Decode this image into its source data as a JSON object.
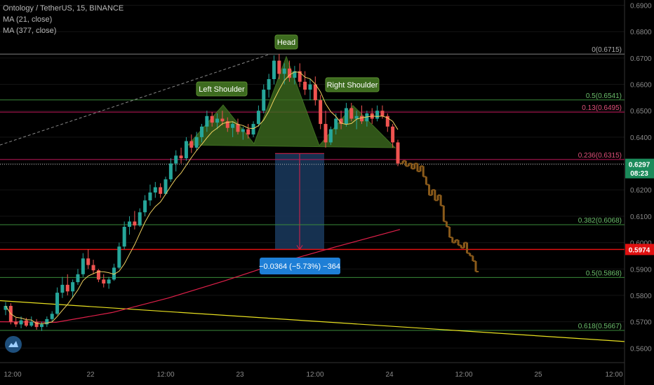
{
  "header": {
    "title": "Ontology / TetherUS, 15, BINANCE",
    "ma1": "MA (21, close)",
    "ma2": "MA (377, close)"
  },
  "colors": {
    "background": "#000000",
    "bull": "#26a69a",
    "bear": "#ef5350",
    "ma21": "#f0d060",
    "ma377": "#e0204a",
    "fib_green": "#3a8a3a",
    "fib_red": "#c2185b",
    "projection": "#8a5a1a",
    "pattern_fill": "#3d6b1f",
    "measure_box": "#1a3a5e",
    "badge_blue": "#1e7fd6",
    "price_green": "#1b8a5a",
    "price_red": "#e01010"
  },
  "chart_data": {
    "type": "candlestick",
    "symbol": "Ontology / TetherUS",
    "interval": "15",
    "exchange": "BINANCE",
    "y_axis": {
      "ticks": [
        "0.6900",
        "0.6800",
        "0.6700",
        "0.6600",
        "0.6500",
        "0.6400",
        "0.6300",
        "0.6200",
        "0.6100",
        "0.6000",
        "0.5900",
        "0.5800",
        "0.5700",
        "0.5600"
      ],
      "range": [
        0.5545,
        0.692
      ]
    },
    "x_axis": {
      "ticks": [
        "12:00",
        "22",
        "12:00",
        "23",
        "12:00",
        "24",
        "12:00",
        "25",
        "12:00"
      ]
    },
    "fib_levels": [
      {
        "label": "0(0.6715)",
        "value": 0.6715,
        "color": "#808080"
      },
      {
        "label": "0.5(0.6541)",
        "value": 0.6541,
        "color": "#3a8a3a"
      },
      {
        "label": "0.13(0.6495)",
        "value": 0.6495,
        "color": "#c2185b"
      },
      {
        "label": "0.236(0.6315)",
        "value": 0.6315,
        "color": "#c2185b"
      },
      {
        "label": "0.382(0.6068)",
        "value": 0.6068,
        "color": "#3a8a3a"
      },
      {
        "label": "0.5(0.5868)",
        "value": 0.5868,
        "color": "#3a8a3a"
      },
      {
        "label": "0.618(0.5667)",
        "value": 0.5667,
        "color": "#3a8a3a"
      }
    ],
    "price_tags": [
      {
        "label": "0.6297",
        "value": 0.6297,
        "color": "#1b8a5a"
      },
      {
        "label": "08:23",
        "value": 0.6265,
        "color": "#1b8a5a"
      },
      {
        "label": "0.5974",
        "value": 0.5974,
        "color": "#e01010"
      }
    ],
    "pattern_labels": {
      "left": "Left Shoulder",
      "head": "Head",
      "right": "Right Shoulder"
    },
    "measure": {
      "label": "−0.0364 (−5.73%) −364",
      "from": 0.6338,
      "to": 0.5974
    },
    "candles": [
      [
        0.5745,
        0.5775,
        0.5725,
        0.576
      ],
      [
        0.576,
        0.577,
        0.569,
        0.57
      ],
      [
        0.57,
        0.5715,
        0.568,
        0.569
      ],
      [
        0.569,
        0.572,
        0.5675,
        0.5705
      ],
      [
        0.5705,
        0.5715,
        0.568,
        0.5685
      ],
      [
        0.5685,
        0.572,
        0.568,
        0.57
      ],
      [
        0.57,
        0.571,
        0.567,
        0.568
      ],
      [
        0.568,
        0.57,
        0.5665,
        0.569
      ],
      [
        0.569,
        0.572,
        0.568,
        0.571
      ],
      [
        0.571,
        0.574,
        0.57,
        0.573
      ],
      [
        0.573,
        0.583,
        0.5725,
        0.581
      ],
      [
        0.581,
        0.587,
        0.579,
        0.584
      ],
      [
        0.584,
        0.588,
        0.58,
        0.5815
      ],
      [
        0.5815,
        0.586,
        0.579,
        0.585
      ],
      [
        0.585,
        0.59,
        0.584,
        0.588
      ],
      [
        0.588,
        0.596,
        0.587,
        0.594
      ],
      [
        0.594,
        0.5975,
        0.59,
        0.5915
      ],
      [
        0.5915,
        0.5935,
        0.588,
        0.5895
      ],
      [
        0.5895,
        0.59,
        0.585,
        0.586
      ],
      [
        0.586,
        0.588,
        0.583,
        0.5845
      ],
      [
        0.5845,
        0.587,
        0.5825,
        0.586
      ],
      [
        0.586,
        0.592,
        0.5855,
        0.5905
      ],
      [
        0.5905,
        0.6,
        0.59,
        0.5985
      ],
      [
        0.5985,
        0.608,
        0.5975,
        0.606
      ],
      [
        0.606,
        0.61,
        0.603,
        0.608
      ],
      [
        0.608,
        0.612,
        0.605,
        0.6065
      ],
      [
        0.6065,
        0.613,
        0.606,
        0.6115
      ],
      [
        0.6115,
        0.618,
        0.61,
        0.616
      ],
      [
        0.616,
        0.622,
        0.614,
        0.619
      ],
      [
        0.619,
        0.623,
        0.617,
        0.621
      ],
      [
        0.621,
        0.6225,
        0.617,
        0.6185
      ],
      [
        0.6185,
        0.625,
        0.618,
        0.624
      ],
      [
        0.624,
        0.632,
        0.623,
        0.63
      ],
      [
        0.63,
        0.635,
        0.627,
        0.633
      ],
      [
        0.633,
        0.636,
        0.63,
        0.632
      ],
      [
        0.632,
        0.64,
        0.631,
        0.6385
      ],
      [
        0.6385,
        0.641,
        0.634,
        0.636
      ],
      [
        0.636,
        0.642,
        0.635,
        0.64
      ],
      [
        0.64,
        0.645,
        0.638,
        0.644
      ],
      [
        0.644,
        0.65,
        0.642,
        0.648
      ],
      [
        0.648,
        0.6495,
        0.644,
        0.6455
      ],
      [
        0.6455,
        0.649,
        0.643,
        0.647
      ],
      [
        0.647,
        0.65,
        0.6445,
        0.646
      ],
      [
        0.646,
        0.6475,
        0.642,
        0.6435
      ],
      [
        0.6435,
        0.646,
        0.64,
        0.645
      ],
      [
        0.645,
        0.647,
        0.641,
        0.642
      ],
      [
        0.642,
        0.644,
        0.639,
        0.643
      ],
      [
        0.643,
        0.645,
        0.6395,
        0.641
      ],
      [
        0.641,
        0.646,
        0.64,
        0.645
      ],
      [
        0.645,
        0.652,
        0.644,
        0.65
      ],
      [
        0.65,
        0.66,
        0.649,
        0.658
      ],
      [
        0.658,
        0.664,
        0.655,
        0.662
      ],
      [
        0.662,
        0.671,
        0.66,
        0.669
      ],
      [
        0.669,
        0.6715,
        0.662,
        0.664
      ],
      [
        0.664,
        0.668,
        0.66,
        0.666
      ],
      [
        0.666,
        0.669,
        0.661,
        0.6625
      ],
      [
        0.6625,
        0.667,
        0.66,
        0.665
      ],
      [
        0.665,
        0.668,
        0.659,
        0.661
      ],
      [
        0.661,
        0.665,
        0.656,
        0.658
      ],
      [
        0.658,
        0.662,
        0.654,
        0.66
      ],
      [
        0.66,
        0.663,
        0.652,
        0.654
      ],
      [
        0.654,
        0.656,
        0.643,
        0.645
      ],
      [
        0.645,
        0.65,
        0.636,
        0.638
      ],
      [
        0.638,
        0.644,
        0.637,
        0.643
      ],
      [
        0.643,
        0.649,
        0.641,
        0.647
      ],
      [
        0.647,
        0.65,
        0.643,
        0.645
      ],
      [
        0.645,
        0.653,
        0.644,
        0.651
      ],
      [
        0.651,
        0.653,
        0.646,
        0.647
      ],
      [
        0.647,
        0.65,
        0.643,
        0.648
      ],
      [
        0.648,
        0.652,
        0.645,
        0.646
      ],
      [
        0.646,
        0.65,
        0.644,
        0.649
      ],
      [
        0.649,
        0.651,
        0.645,
        0.647
      ],
      [
        0.647,
        0.652,
        0.646,
        0.65
      ],
      [
        0.65,
        0.652,
        0.647,
        0.648
      ],
      [
        0.648,
        0.649,
        0.642,
        0.644
      ],
      [
        0.644,
        0.645,
        0.636,
        0.638
      ],
      [
        0.638,
        0.639,
        0.629,
        0.63
      ]
    ],
    "projection": [
      0.63,
      0.631,
      0.629,
      0.63,
      0.628,
      0.63,
      0.627,
      0.629,
      0.625,
      0.622,
      0.618,
      0.62,
      0.616,
      0.618,
      0.614,
      0.608,
      0.606,
      0.602,
      0.6,
      0.601,
      0.599,
      0.598,
      0.6,
      0.596,
      0.595,
      0.593,
      0.589
    ]
  }
}
